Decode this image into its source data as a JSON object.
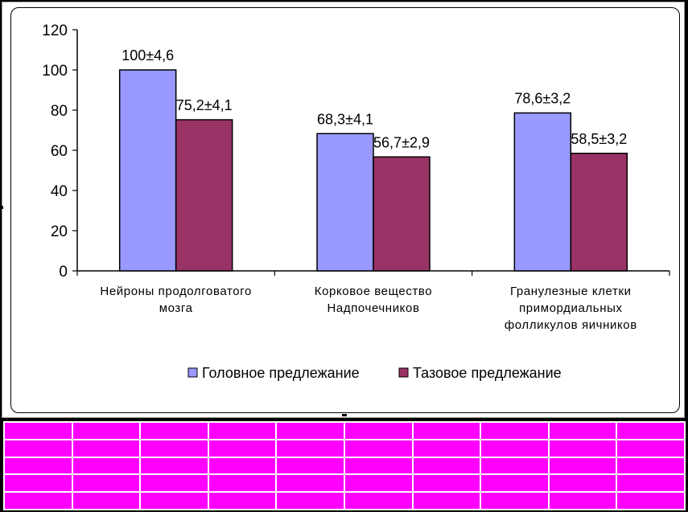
{
  "chart_data": {
    "type": "bar",
    "categories": [
      [
        "Нейроны продолговатого",
        "мозга"
      ],
      [
        "Корковое вещество",
        "Надпочечников"
      ],
      [
        "Гранулезные клетки",
        "примордиальных",
        "фолликулов яичников"
      ]
    ],
    "series": [
      {
        "name": "Головное предлежание",
        "color": "#9999ff",
        "values": [
          100,
          68.3,
          78.6
        ],
        "labels": [
          "100±4,6",
          "68,3±4,1",
          "78,6±3,2"
        ]
      },
      {
        "name": "Тазовое предлежание",
        "color": "#993366",
        "values": [
          75.2,
          56.7,
          58.5
        ],
        "labels": [
          "75,2±4,1",
          "56,7±2,9",
          "58,5±3,2"
        ]
      }
    ],
    "yticks": [
      "0",
      "20",
      "40",
      "60",
      "80",
      "100",
      "120"
    ],
    "ylim": [
      0,
      120
    ],
    "grid": false,
    "legend_position": "bottom"
  },
  "grid_rows": 5,
  "grid_cols": 10,
  "grid_color": "#ff00ff"
}
